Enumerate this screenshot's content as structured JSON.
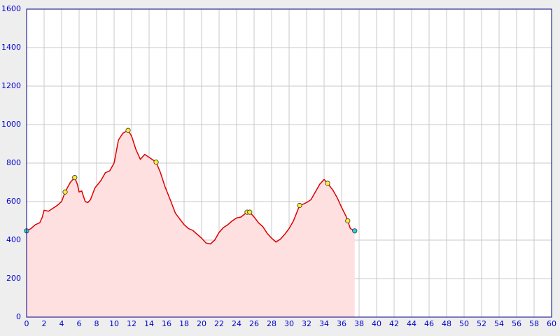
{
  "chart_data": {
    "type": "line",
    "x": [
      0,
      0.5,
      1,
      1.5,
      1.8,
      2,
      2.5,
      3,
      3.5,
      4,
      4.4,
      5,
      5.5,
      5.8,
      6,
      6.3,
      6.7,
      7,
      7.3,
      7.8,
      8.5,
      9,
      9.5,
      10,
      10.5,
      11,
      11.6,
      12,
      12.5,
      13,
      13.5,
      14,
      14.8,
      15.3,
      15.8,
      16.5,
      17,
      17.5,
      18,
      18.5,
      19,
      19.5,
      20,
      20.5,
      21,
      21.5,
      22,
      22.5,
      23,
      23.5,
      24,
      24.5,
      25.2,
      25.5,
      26,
      26.5,
      27,
      27.5,
      28,
      28.5,
      29,
      29.5,
      30,
      30.5,
      31.2,
      31.5,
      32,
      32.5,
      33,
      33.5,
      34,
      34.4,
      35,
      35.5,
      36,
      36.5,
      36.7,
      37,
      37.5
    ],
    "values": [
      448,
      460,
      480,
      490,
      520,
      555,
      550,
      565,
      580,
      600,
      650,
      700,
      725,
      690,
      650,
      655,
      600,
      595,
      610,
      670,
      710,
      750,
      760,
      800,
      920,
      955,
      970,
      940,
      870,
      820,
      845,
      830,
      805,
      750,
      680,
      600,
      540,
      510,
      480,
      460,
      450,
      430,
      410,
      385,
      380,
      400,
      440,
      465,
      480,
      500,
      515,
      520,
      545,
      545,
      520,
      490,
      470,
      435,
      410,
      390,
      405,
      430,
      460,
      500,
      580,
      585,
      595,
      610,
      650,
      690,
      715,
      695,
      660,
      620,
      570,
      525,
      500,
      460,
      448
    ],
    "color": "#dd0000",
    "fill_color": "#ffe0e0",
    "markers": {
      "x": [
        0,
        4.4,
        5.5,
        11.6,
        14.8,
        25.2,
        25.5,
        31.2,
        34.4,
        36.7,
        37.5
      ],
      "values": [
        448,
        650,
        725,
        970,
        805,
        545,
        545,
        580,
        695,
        500,
        448
      ],
      "colors": [
        "#33ccee",
        "#ffee33",
        "#ffee33",
        "#ffee33",
        "#ffee33",
        "#ffee33",
        "#ffee33",
        "#ffee33",
        "#ffee33",
        "#ffee33",
        "#33ccee"
      ]
    },
    "xlim": [
      0,
      60
    ],
    "ylim": [
      0,
      1600
    ],
    "xticks": [
      0,
      2,
      4,
      6,
      8,
      10,
      12,
      14,
      16,
      18,
      20,
      22,
      24,
      26,
      28,
      30,
      32,
      34,
      36,
      38,
      40,
      42,
      44,
      46,
      48,
      50,
      52,
      54,
      56,
      58,
      60
    ],
    "yticks": [
      0,
      200,
      400,
      600,
      800,
      1000,
      1200,
      1400,
      1600
    ],
    "grid": true
  }
}
